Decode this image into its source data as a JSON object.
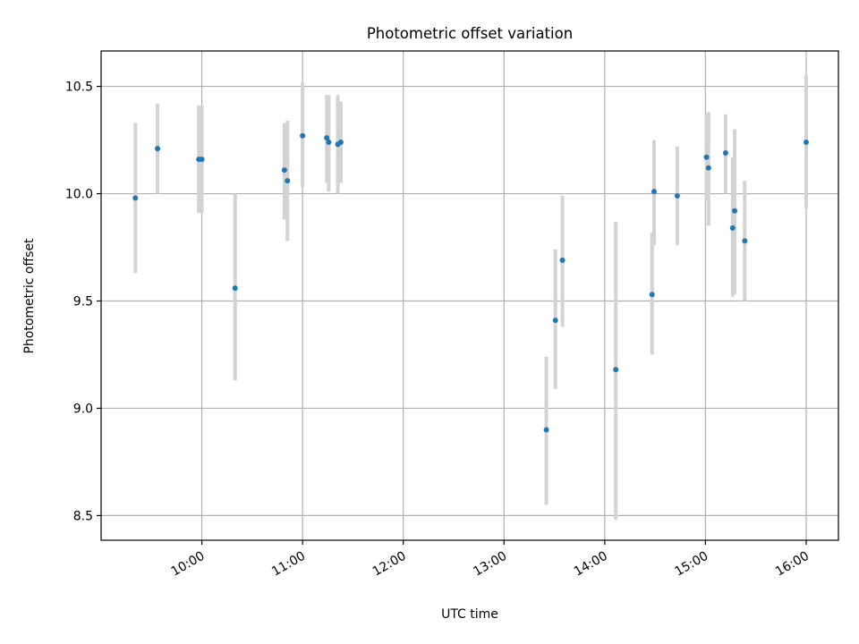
{
  "chart_data": {
    "type": "scatter",
    "title": "Photometric offset variation",
    "xlabel": "UTC time",
    "ylabel": "Photometric offset",
    "x_unit": "UTC hours",
    "xlim": [
      9.0,
      16.32
    ],
    "ylim": [
      8.385,
      10.665
    ],
    "grid": true,
    "legend": "none",
    "x_ticks": [
      {
        "value": 10,
        "label": "10:00"
      },
      {
        "value": 11,
        "label": "11:00"
      },
      {
        "value": 12,
        "label": "12:00"
      },
      {
        "value": 13,
        "label": "13:00"
      },
      {
        "value": 14,
        "label": "14:00"
      },
      {
        "value": 15,
        "label": "15:00"
      },
      {
        "value": 16,
        "label": "16:00"
      }
    ],
    "y_ticks": [
      {
        "value": 8.5,
        "label": "8.5"
      },
      {
        "value": 9.0,
        "label": "9.0"
      },
      {
        "value": 9.5,
        "label": "9.5"
      },
      {
        "value": 10.0,
        "label": "10.0"
      },
      {
        "value": 10.5,
        "label": "10.5"
      }
    ],
    "colors": {
      "points": "#1f77b4",
      "errorbars": "#d3d3d3",
      "grid": "#b0b0b0"
    },
    "points": [
      {
        "time": "09:20",
        "x": 9.34,
        "y": 9.98,
        "ylow": 9.63,
        "yhigh": 10.33
      },
      {
        "time": "09:34",
        "x": 9.56,
        "y": 10.21,
        "ylow": 10.0,
        "yhigh": 10.42
      },
      {
        "time": "09:58",
        "x": 9.97,
        "y": 10.16,
        "ylow": 9.91,
        "yhigh": 10.41
      },
      {
        "time": "10:00",
        "x": 10.0,
        "y": 10.16,
        "ylow": 9.91,
        "yhigh": 10.41
      },
      {
        "time": "10:20",
        "x": 10.33,
        "y": 9.56,
        "ylow": 9.13,
        "yhigh": 10.0
      },
      {
        "time": "10:49",
        "x": 10.82,
        "y": 10.11,
        "ylow": 9.88,
        "yhigh": 10.33
      },
      {
        "time": "10:51",
        "x": 10.85,
        "y": 10.06,
        "ylow": 9.78,
        "yhigh": 10.34
      },
      {
        "time": "11:00",
        "x": 11.0,
        "y": 10.27,
        "ylow": 10.03,
        "yhigh": 10.52
      },
      {
        "time": "11:15",
        "x": 11.24,
        "y": 10.26,
        "ylow": 10.05,
        "yhigh": 10.46
      },
      {
        "time": "11:16",
        "x": 11.26,
        "y": 10.24,
        "ylow": 10.01,
        "yhigh": 10.46
      },
      {
        "time": "11:21",
        "x": 11.35,
        "y": 10.23,
        "ylow": 10.0,
        "yhigh": 10.46
      },
      {
        "time": "11:23",
        "x": 11.38,
        "y": 10.24,
        "ylow": 10.05,
        "yhigh": 10.43
      },
      {
        "time": "13:25",
        "x": 13.42,
        "y": 8.9,
        "ylow": 8.55,
        "yhigh": 9.24
      },
      {
        "time": "13:31",
        "x": 13.51,
        "y": 9.41,
        "ylow": 9.09,
        "yhigh": 9.74
      },
      {
        "time": "13:35",
        "x": 13.58,
        "y": 9.69,
        "ylow": 9.38,
        "yhigh": 9.99
      },
      {
        "time": "14:06",
        "x": 14.11,
        "y": 9.18,
        "ylow": 8.48,
        "yhigh": 9.87
      },
      {
        "time": "14:28",
        "x": 14.47,
        "y": 9.53,
        "ylow": 9.25,
        "yhigh": 9.82
      },
      {
        "time": "14:29",
        "x": 14.49,
        "y": 10.01,
        "ylow": 9.76,
        "yhigh": 10.25
      },
      {
        "time": "14:43",
        "x": 14.72,
        "y": 9.99,
        "ylow": 9.76,
        "yhigh": 10.22
      },
      {
        "time": "15:01",
        "x": 15.01,
        "y": 10.17,
        "ylow": 9.97,
        "yhigh": 10.37
      },
      {
        "time": "15:02",
        "x": 15.03,
        "y": 10.12,
        "ylow": 9.85,
        "yhigh": 10.38
      },
      {
        "time": "15:12",
        "x": 15.2,
        "y": 10.19,
        "ylow": 10.0,
        "yhigh": 10.37
      },
      {
        "time": "15:16",
        "x": 15.27,
        "y": 9.84,
        "ylow": 9.52,
        "yhigh": 10.17
      },
      {
        "time": "15:17",
        "x": 15.29,
        "y": 9.92,
        "ylow": 9.53,
        "yhigh": 10.3
      },
      {
        "time": "15:23",
        "x": 15.39,
        "y": 9.78,
        "ylow": 9.5,
        "yhigh": 10.06
      },
      {
        "time": "16:00",
        "x": 16.0,
        "y": 10.24,
        "ylow": 9.93,
        "yhigh": 10.55
      }
    ]
  }
}
